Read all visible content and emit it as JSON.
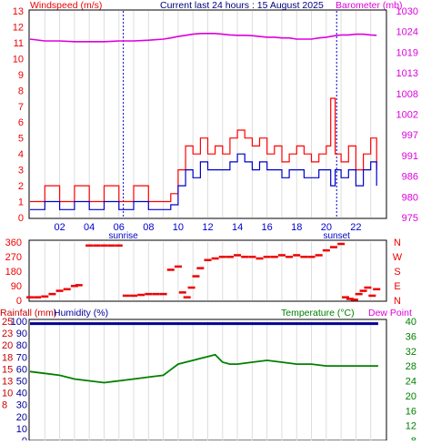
{
  "header": {
    "left_label": "Windspeed (m/s)",
    "center_label": "Current last 24 hours : 15 August 2025",
    "right_label": "Barometer (mb)"
  },
  "colors": {
    "wind_gust": "#ff0000",
    "wind_avg": "#0000cc",
    "barometer": "#dd00dd",
    "direction": "#ee0000",
    "humidity": "#000099",
    "temperature": "#008000",
    "rain": "#cc0000",
    "grid": "#dddddd",
    "sun_marker": "#0000cc"
  },
  "chart_data": [
    {
      "type": "line",
      "name_key": "wind_baro",
      "x_ticks": [
        "02",
        "04",
        "06",
        "08",
        "10",
        "12",
        "14",
        "16",
        "18",
        "20",
        "22"
      ],
      "y_left_ticks": [
        "0",
        "1",
        "2",
        "3",
        "4",
        "5",
        "6",
        "7",
        "8",
        "9",
        "10",
        "11",
        "12",
        "13"
      ],
      "y_left_range": [
        0,
        13
      ],
      "y_right_ticks": [
        "975",
        "980",
        "986",
        "991",
        "997",
        "1002",
        "1008",
        "1013",
        "1019",
        "1024",
        "1030"
      ],
      "y_right_range": [
        975,
        1030
      ],
      "markers": [
        {
          "label": "sunrise",
          "hour": 6.3
        },
        {
          "label": "sunset",
          "hour": 20.7
        }
      ],
      "hours": [
        0,
        1,
        2,
        3,
        4,
        5,
        6,
        7,
        8,
        9,
        9.5,
        10,
        10.5,
        11,
        11.5,
        12,
        12.5,
        13,
        13.5,
        14,
        14.5,
        15,
        15.5,
        16,
        16.5,
        17,
        17.5,
        18,
        18.5,
        19,
        19.5,
        20,
        20.3,
        20.6,
        21,
        21.5,
        22,
        22.5,
        23,
        23.4
      ],
      "series": [
        {
          "key": "gust",
          "values": [
            1,
            2,
            1,
            2,
            1,
            2,
            1,
            2,
            1,
            1,
            1.5,
            3,
            4.5,
            4,
            5,
            4,
            4.5,
            4,
            5,
            5.5,
            5,
            4.5,
            5,
            4,
            4.5,
            3.5,
            4,
            4.5,
            4,
            3.5,
            4,
            4.5,
            7.5,
            4,
            3.5,
            4.5,
            3,
            4,
            5,
            3
          ]
        },
        {
          "key": "avg",
          "values": [
            0.5,
            1,
            0.5,
            1,
            0.5,
            1,
            0.5,
            1,
            0.5,
            0.5,
            0.8,
            2,
            3,
            2.5,
            3.5,
            3,
            3,
            3,
            3.5,
            4,
            3.5,
            3,
            3.5,
            3,
            3,
            2.5,
            3,
            3,
            2.5,
            2.5,
            3,
            3,
            2,
            3,
            2.5,
            3,
            2,
            3,
            3.5,
            2
          ]
        },
        {
          "key": "barometer",
          "values": [
            1022.5,
            1022,
            1022,
            1021.8,
            1021.8,
            1021.8,
            1022,
            1022,
            1022.2,
            1022.5,
            1022.8,
            1023.2,
            1023.5,
            1023.8,
            1024,
            1024,
            1024,
            1023.8,
            1023.6,
            1023.5,
            1023.5,
            1023.4,
            1023.2,
            1023,
            1023,
            1022.8,
            1022.8,
            1022.5,
            1022.5,
            1022.5,
            1022.8,
            1023,
            1023.2,
            1023.4,
            1023.6,
            1023.6,
            1023.8,
            1023.8,
            1023.6,
            1023.5
          ]
        }
      ]
    },
    {
      "type": "scatter",
      "name_key": "direction",
      "y_ticks": [
        "0",
        "90",
        "180",
        "270",
        "360"
      ],
      "y_range": [
        0,
        360
      ],
      "compass": [
        "N",
        "W",
        "S",
        "E",
        "N"
      ],
      "points_hours": [
        0,
        0.5,
        1,
        1.5,
        2,
        2.5,
        3,
        3.3,
        4,
        4.5,
        5,
        5.5,
        6,
        6.5,
        7,
        7.5,
        8,
        8.5,
        9,
        9.5,
        10,
        10.3,
        10.6,
        10.9,
        11.2,
        11.5,
        12,
        12.5,
        13,
        13.5,
        14,
        14.5,
        15,
        15.5,
        16,
        16.5,
        17,
        17.5,
        18,
        18.5,
        19,
        19.5,
        20,
        20.5,
        21,
        21.3,
        21.6,
        21.9,
        22.2,
        22.5,
        22.8,
        23.1,
        23.4
      ],
      "points_deg": [
        20,
        20,
        25,
        40,
        60,
        70,
        90,
        95,
        340,
        340,
        340,
        340,
        340,
        30,
        30,
        35,
        40,
        40,
        40,
        190,
        210,
        50,
        20,
        80,
        150,
        200,
        250,
        260,
        270,
        270,
        280,
        270,
        270,
        260,
        270,
        270,
        280,
        270,
        280,
        270,
        270,
        280,
        310,
        330,
        350,
        20,
        10,
        5,
        40,
        60,
        80,
        30,
        70
      ]
    },
    {
      "type": "line",
      "name_key": "thermo",
      "left_label": "Rainfall (mm)",
      "mid_label": "Humidity (%)",
      "right_label": "Temperature (°C)",
      "dew_label": "Dew Point",
      "y_hum_ticks": [
        "100",
        "90",
        "80",
        "70",
        "60",
        "50",
        "40",
        "30",
        "20",
        "10",
        "0"
      ],
      "y_rain_ticks": [
        "25",
        "23",
        "20",
        "18",
        "15",
        "13",
        "10",
        "8"
      ],
      "y_temp_ticks": [
        "40",
        "36",
        "32",
        "28",
        "24",
        "20",
        "16",
        "12",
        "8"
      ],
      "y_temp_range": [
        8,
        40
      ],
      "hours": [
        0,
        1,
        2,
        3,
        4,
        5,
        6,
        7,
        8,
        9,
        9.5,
        10,
        10.5,
        11,
        11.5,
        12,
        12.5,
        13,
        13.5,
        14,
        15,
        16,
        17,
        18,
        19,
        20,
        21,
        22,
        23,
        23.5
      ],
      "series": [
        {
          "key": "temperature",
          "values": [
            26.5,
            26,
            25.5,
            24.5,
            24,
            23.5,
            24,
            24.5,
            25,
            25.5,
            27,
            28.5,
            29,
            29.5,
            30,
            30.5,
            31,
            29,
            28.5,
            28.5,
            29,
            29.5,
            29,
            28.5,
            28.5,
            28,
            28,
            28,
            28,
            28
          ]
        },
        {
          "key": "humidity",
          "values": [
            98,
            98,
            98,
            98,
            98,
            98,
            98,
            98,
            98,
            98,
            98,
            98,
            98,
            98,
            98,
            98,
            98,
            98,
            98,
            98,
            98,
            98,
            98,
            98,
            98,
            98,
            98,
            98,
            98,
            98
          ]
        }
      ]
    }
  ]
}
